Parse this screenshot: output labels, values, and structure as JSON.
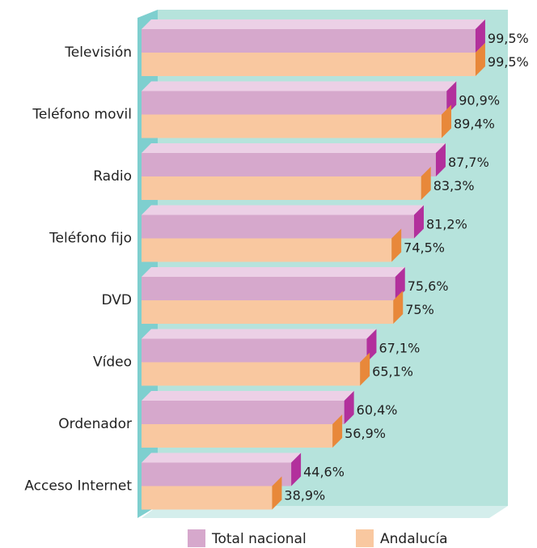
{
  "chart_data": {
    "type": "bar3d",
    "categories": [
      "Televisión",
      "Teléfono movil",
      "Radio",
      "Teléfono fijo",
      "DVD",
      "Vídeo",
      "Ordenador",
      "Acceso Internet"
    ],
    "series": [
      {
        "name": "Total nacional",
        "color": "#d6a8cc",
        "values": [
          99.5,
          90.9,
          87.7,
          81.2,
          75.6,
          67.1,
          60.4,
          44.6
        ],
        "value_labels": [
          "99,5%",
          "90,9%",
          "87,7%",
          "81,2%",
          "75,6%",
          "67,1%",
          "60,4%",
          "44,6%"
        ]
      },
      {
        "name": "Andalucía",
        "color": "#f9c8a0",
        "values": [
          99.5,
          89.4,
          83.3,
          74.5,
          75,
          65.1,
          56.9,
          38.9
        ],
        "value_labels": [
          "99,5%",
          "89,4%",
          "83,3%",
          "74,5%",
          "75%",
          "65,1%",
          "56,9%",
          "38,9%"
        ]
      }
    ],
    "xlim": [
      0,
      100
    ]
  }
}
